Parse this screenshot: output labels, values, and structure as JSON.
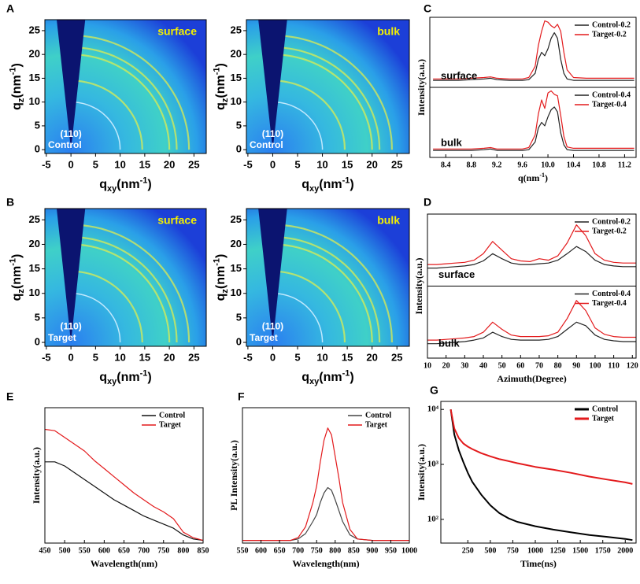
{
  "chart_data": [
    {
      "panel": "A",
      "type": "image",
      "annotation": "surface",
      "peak_label": "(110)",
      "sample": "Control",
      "x_label": {
        "base": "q",
        "sub": "xy",
        "unit": "(nm",
        "sup": "-1",
        "close": ")"
      },
      "y_label": {
        "base": "q",
        "sub": "z",
        "unit": "(nm",
        "sup": "-1",
        "close": ")"
      },
      "xlim": [
        -5.3,
        27.5
      ],
      "ylim": [
        -0.8,
        27.3
      ],
      "xticks": [
        -5,
        0,
        5,
        10,
        15,
        20,
        25
      ],
      "yticks": [
        0,
        5,
        10,
        15,
        20,
        25
      ],
      "rings": [
        10,
        14.5,
        20,
        21.5,
        24
      ]
    },
    {
      "type": "image",
      "annotation": "bulk",
      "peak_label": "(110)",
      "sample": "Control",
      "x_label": {
        "base": "q",
        "sub": "xy",
        "unit": "(nm",
        "sup": "-1",
        "close": ")"
      },
      "y_label": {
        "base": "q",
        "sub": "z",
        "unit": "(nm",
        "sup": "-1",
        "close": ")"
      },
      "xlim": [
        -5.3,
        27.5
      ],
      "ylim": [
        -0.8,
        27.3
      ],
      "xticks": [
        -5,
        0,
        5,
        10,
        15,
        20,
        25
      ],
      "yticks": [
        0,
        5,
        10,
        15,
        20,
        25
      ],
      "rings": [
        10,
        14.5,
        20,
        21.5,
        24
      ]
    },
    {
      "panel": "B",
      "type": "image",
      "annotation": "surface",
      "peak_label": "(110)",
      "sample": "Target",
      "x_label": {
        "base": "q",
        "sub": "xy",
        "unit": "(nm",
        "sup": "-1",
        "close": ")"
      },
      "y_label": {
        "base": "q",
        "sub": "z",
        "unit": "(nm",
        "sup": "-1",
        "close": ")"
      },
      "xlim": [
        -5.3,
        27.5
      ],
      "ylim": [
        -0.8,
        27.3
      ],
      "xticks": [
        -5,
        0,
        5,
        10,
        15,
        20,
        25
      ],
      "yticks": [
        0,
        5,
        10,
        15,
        20,
        25
      ],
      "rings": [
        10,
        14.5,
        20,
        21.5,
        24
      ]
    },
    {
      "type": "image",
      "annotation": "bulk",
      "peak_label": "(110)",
      "sample": "Target",
      "x_label": {
        "base": "q",
        "sub": "xy",
        "unit": "(nm",
        "sup": "-1",
        "close": ")"
      },
      "y_label": {
        "base": "q",
        "sub": "z",
        "unit": "(nm",
        "sup": "-1",
        "close": ")"
      },
      "xlim": [
        -5.3,
        27.5
      ],
      "ylim": [
        -0.8,
        27.3
      ],
      "xticks": [
        -5,
        0,
        5,
        10,
        15,
        20,
        25
      ],
      "yticks": [
        0,
        5,
        10,
        15,
        20,
        25
      ],
      "rings": [
        10,
        14.5,
        20,
        21.5,
        24
      ]
    },
    {
      "panel": "C",
      "type": "line",
      "x_label": {
        "base": "q",
        "unit": "(nm",
        "sup": "-1",
        "close": ")"
      },
      "y_label": "Intensity(a.u.)",
      "xlim": [
        8.15,
        11.38
      ],
      "xticks": [
        8.4,
        8.8,
        9.2,
        9.6,
        {
          "value": 10,
          "label": "10.0"
        },
        10.4,
        10.8,
        11.2
      ],
      "legend": "upper right",
      "subplots": [
        {
          "annotation": "surface",
          "ylim": [
            0,
            1
          ],
          "x": [
            8.2,
            8.4,
            8.6,
            8.8,
            9.0,
            9.1,
            9.2,
            9.4,
            9.6,
            9.7,
            9.8,
            9.85,
            9.9,
            9.95,
            10.0,
            10.05,
            10.1,
            10.15,
            10.2,
            10.25,
            10.3,
            10.4,
            10.6,
            10.8,
            11.0,
            11.2,
            11.35
          ],
          "series": [
            {
              "name": "Control-0.2",
              "color": "#222222",
              "values": [
                0.1,
                0.1,
                0.1,
                0.11,
                0.12,
                0.13,
                0.11,
                0.1,
                0.1,
                0.11,
                0.2,
                0.4,
                0.5,
                0.45,
                0.55,
                0.7,
                0.78,
                0.7,
                0.4,
                0.2,
                0.12,
                0.1,
                0.1,
                0.1,
                0.1,
                0.1,
                0.1
              ]
            },
            {
              "name": "Target-0.2",
              "color": "#e31a1c",
              "values": [
                0.12,
                0.12,
                0.12,
                0.13,
                0.14,
                0.15,
                0.13,
                0.12,
                0.12,
                0.14,
                0.3,
                0.6,
                0.8,
                0.95,
                0.93,
                0.88,
                0.85,
                0.9,
                0.8,
                0.5,
                0.25,
                0.14,
                0.13,
                0.13,
                0.13,
                0.13,
                0.13
              ]
            }
          ]
        },
        {
          "annotation": "bulk",
          "ylim": [
            0,
            1
          ],
          "x": [
            8.2,
            8.4,
            8.6,
            8.8,
            9.0,
            9.1,
            9.2,
            9.4,
            9.6,
            9.7,
            9.8,
            9.85,
            9.9,
            9.95,
            10.0,
            10.05,
            10.1,
            10.15,
            10.2,
            10.25,
            10.3,
            10.4,
            10.6,
            10.8,
            11.0,
            11.2,
            11.35
          ],
          "series": [
            {
              "name": "Control-0.4",
              "color": "#222222",
              "values": [
                0.1,
                0.1,
                0.1,
                0.1,
                0.11,
                0.12,
                0.1,
                0.1,
                0.1,
                0.11,
                0.22,
                0.42,
                0.5,
                0.45,
                0.58,
                0.68,
                0.72,
                0.65,
                0.35,
                0.18,
                0.11,
                0.1,
                0.1,
                0.1,
                0.1,
                0.1,
                0.1
              ]
            },
            {
              "name": "Target-0.4",
              "color": "#e31a1c",
              "values": [
                0.12,
                0.12,
                0.12,
                0.12,
                0.13,
                0.14,
                0.12,
                0.12,
                0.12,
                0.14,
                0.32,
                0.62,
                0.82,
                0.7,
                0.92,
                0.95,
                0.9,
                0.88,
                0.6,
                0.3,
                0.15,
                0.13,
                0.13,
                0.13,
                0.13,
                0.13,
                0.13
              ]
            }
          ]
        }
      ]
    },
    {
      "panel": "D",
      "type": "line",
      "x_label": "Azimuth(Degree)",
      "y_label": "Intensity(a.u.)",
      "xlim": [
        10,
        122
      ],
      "xticks": [
        10,
        20,
        30,
        40,
        50,
        60,
        70,
        80,
        90,
        100,
        110,
        120
      ],
      "legend": "upper right",
      "subplots": [
        {
          "annotation": "surface",
          "ylim": [
            0,
            1
          ],
          "x": [
            10,
            15,
            20,
            25,
            30,
            35,
            40,
            45,
            50,
            55,
            60,
            65,
            70,
            75,
            80,
            85,
            90,
            95,
            100,
            105,
            110,
            115,
            120,
            122
          ],
          "series": [
            {
              "name": "Control-0.2",
              "color": "#222222",
              "values": [
                0.25,
                0.25,
                0.26,
                0.27,
                0.28,
                0.3,
                0.35,
                0.45,
                0.38,
                0.32,
                0.3,
                0.3,
                0.31,
                0.32,
                0.36,
                0.45,
                0.55,
                0.48,
                0.36,
                0.3,
                0.28,
                0.27,
                0.27,
                0.27
              ]
            },
            {
              "name": "Target-0.2",
              "color": "#e31a1c",
              "values": [
                0.3,
                0.3,
                0.31,
                0.32,
                0.33,
                0.36,
                0.45,
                0.62,
                0.5,
                0.38,
                0.35,
                0.34,
                0.38,
                0.36,
                0.42,
                0.6,
                0.85,
                0.7,
                0.45,
                0.36,
                0.33,
                0.32,
                0.32,
                0.32
              ]
            }
          ]
        },
        {
          "annotation": "bulk",
          "ylim": [
            0,
            1
          ],
          "x": [
            10,
            15,
            20,
            25,
            30,
            35,
            40,
            45,
            50,
            55,
            60,
            65,
            70,
            75,
            80,
            85,
            90,
            95,
            100,
            105,
            110,
            115,
            120,
            122
          ],
          "series": [
            {
              "name": "Control-0.4",
              "color": "#222222",
              "values": [
                0.2,
                0.2,
                0.21,
                0.22,
                0.23,
                0.25,
                0.28,
                0.36,
                0.3,
                0.26,
                0.25,
                0.25,
                0.25,
                0.26,
                0.3,
                0.4,
                0.5,
                0.45,
                0.32,
                0.26,
                0.24,
                0.23,
                0.23,
                0.23
              ]
            },
            {
              "name": "Target-0.4",
              "color": "#e31a1c",
              "values": [
                0.25,
                0.25,
                0.26,
                0.27,
                0.28,
                0.3,
                0.36,
                0.5,
                0.4,
                0.32,
                0.3,
                0.3,
                0.3,
                0.31,
                0.36,
                0.55,
                0.8,
                0.66,
                0.42,
                0.33,
                0.3,
                0.29,
                0.29,
                0.29
              ]
            }
          ]
        }
      ]
    },
    {
      "panel": "E",
      "type": "line",
      "x_label": "Wavelength(nm)",
      "y_label": "Intensity(a.u.)",
      "xlim": [
        450,
        850
      ],
      "ylim": [
        0,
        1
      ],
      "xticks": [
        450,
        500,
        550,
        600,
        650,
        700,
        750,
        800,
        850
      ],
      "legend": "upper right",
      "x": [
        450,
        475,
        500,
        525,
        550,
        575,
        600,
        625,
        650,
        675,
        700,
        725,
        750,
        775,
        800,
        825,
        850
      ],
      "series": [
        {
          "name": "Control",
          "color": "#111111",
          "values": [
            0.6,
            0.6,
            0.57,
            0.52,
            0.47,
            0.42,
            0.37,
            0.32,
            0.28,
            0.24,
            0.2,
            0.17,
            0.14,
            0.11,
            0.06,
            0.03,
            0.02
          ]
        },
        {
          "name": "Target",
          "color": "#e31a1c",
          "values": [
            0.84,
            0.83,
            0.78,
            0.73,
            0.68,
            0.61,
            0.55,
            0.49,
            0.43,
            0.37,
            0.32,
            0.27,
            0.23,
            0.18,
            0.08,
            0.04,
            0.02
          ]
        }
      ]
    },
    {
      "panel": "F",
      "type": "line",
      "x_label": "Wavelength(nm)",
      "y_label": "PL Intensity(a.u.)",
      "xlim": [
        550,
        1000
      ],
      "ylim": [
        0,
        1
      ],
      "xticks": [
        550,
        600,
        650,
        700,
        750,
        800,
        850,
        900,
        950,
        1000
      ],
      "legend": "upper right",
      "x": [
        550,
        600,
        650,
        680,
        700,
        720,
        740,
        750,
        760,
        770,
        780,
        790,
        800,
        810,
        820,
        840,
        860,
        900,
        950,
        1000
      ],
      "series": [
        {
          "name": "Control",
          "color": "#444444",
          "values": [
            0.02,
            0.02,
            0.02,
            0.02,
            0.03,
            0.07,
            0.16,
            0.21,
            0.3,
            0.37,
            0.41,
            0.39,
            0.32,
            0.24,
            0.16,
            0.06,
            0.03,
            0.02,
            0.02,
            0.02
          ]
        },
        {
          "name": "Target",
          "color": "#e31a1c",
          "values": [
            0.02,
            0.02,
            0.02,
            0.02,
            0.04,
            0.12,
            0.3,
            0.42,
            0.6,
            0.76,
            0.85,
            0.8,
            0.64,
            0.48,
            0.3,
            0.1,
            0.03,
            0.02,
            0.02,
            0.02
          ]
        }
      ]
    },
    {
      "panel": "G",
      "type": "line",
      "x_label": "Time(ns)",
      "y_label": "Intensity(a.u.)",
      "log_y": true,
      "xlim": [
        -50,
        2120
      ],
      "ylim": [
        37,
        14000
      ],
      "xticks": [
        250,
        500,
        750,
        1000,
        1250,
        1500,
        1750,
        2000
      ],
      "yticks": [
        {
          "value": 100,
          "label": "10²"
        },
        {
          "value": 1000,
          "label": "10³"
        },
        {
          "value": 10000,
          "label": "10⁴"
        }
      ],
      "legend": "upper right",
      "x": [
        60,
        100,
        150,
        200,
        250,
        300,
        400,
        500,
        600,
        700,
        800,
        1000,
        1200,
        1400,
        1600,
        1800,
        2000,
        2080
      ],
      "series": [
        {
          "name": "Control",
          "color": "#000000",
          "values": [
            10000,
            3500,
            1800,
            1100,
            700,
            480,
            280,
            180,
            130,
            105,
            90,
            75,
            65,
            58,
            52,
            48,
            44,
            42
          ]
        },
        {
          "name": "Target",
          "color": "#e31a1c",
          "values": [
            10000,
            4500,
            3000,
            2400,
            2100,
            1900,
            1600,
            1400,
            1250,
            1150,
            1050,
            900,
            800,
            700,
            600,
            530,
            470,
            440
          ]
        }
      ]
    }
  ]
}
